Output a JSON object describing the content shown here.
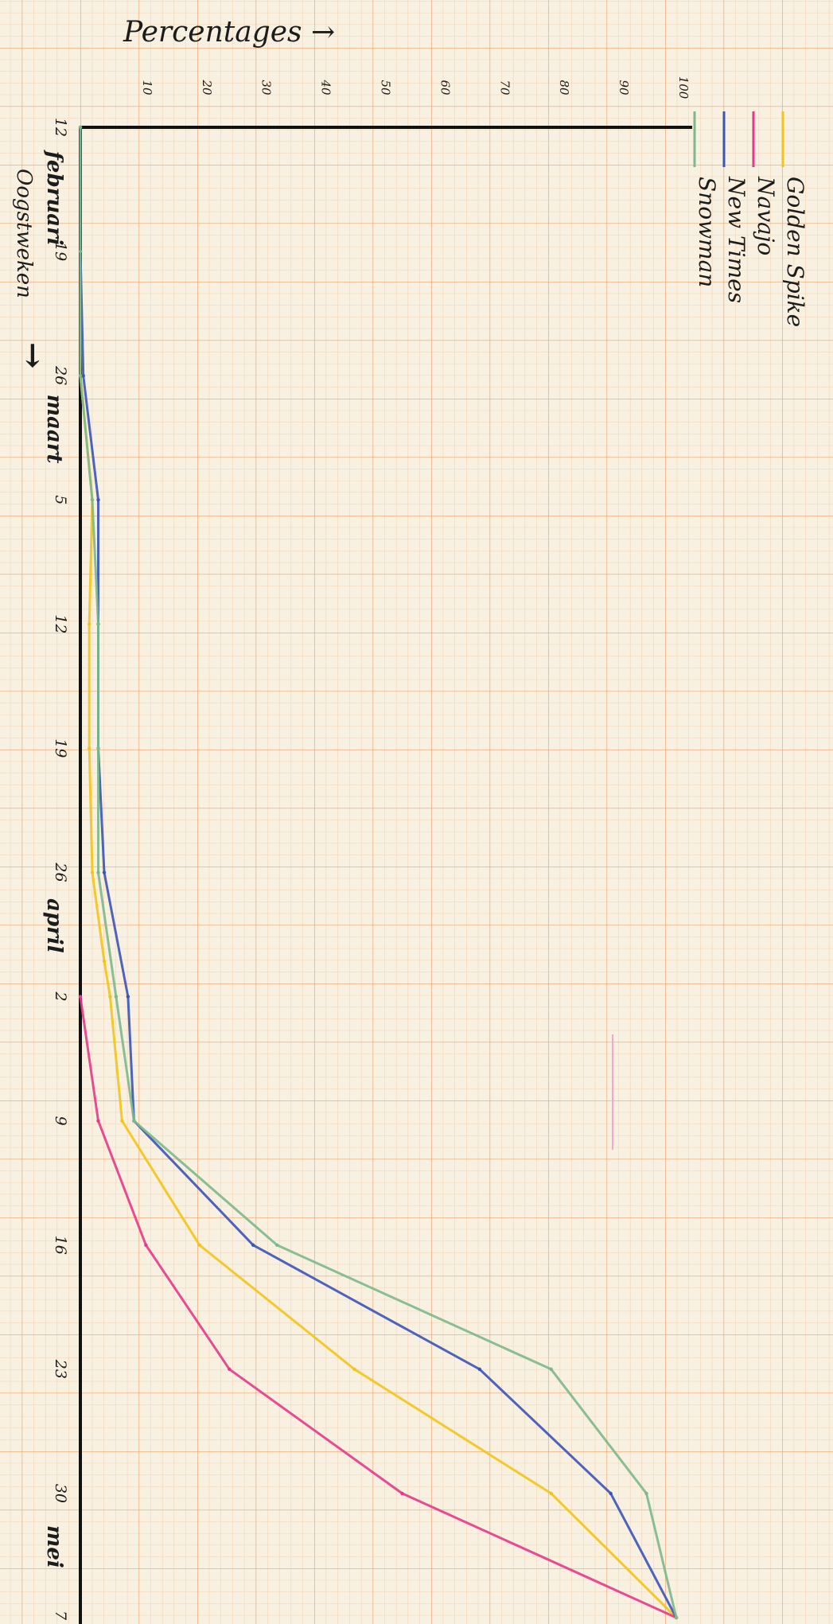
{
  "chart_data": {
    "type": "line",
    "ylabel": "Percentages →",
    "xlabel": "Oogstweken",
    "ylim": [
      0,
      100
    ],
    "yticks": [
      "10",
      "20",
      "30",
      "40",
      "50",
      "60",
      "70",
      "80",
      "90",
      "100"
    ],
    "x_ticks": [
      {
        "label": "12",
        "x": 12
      },
      {
        "label": "19",
        "x": 19
      },
      {
        "label": "26",
        "x": 26
      },
      {
        "label": "5",
        "x": 33
      },
      {
        "label": "12",
        "x": 40
      },
      {
        "label": "19",
        "x": 47
      },
      {
        "label": "26",
        "x": 54
      },
      {
        "label": "2",
        "x": 61
      },
      {
        "label": "9",
        "x": 68
      },
      {
        "label": "16",
        "x": 75
      },
      {
        "label": "23",
        "x": 82
      },
      {
        "label": "30",
        "x": 89
      },
      {
        "label": "7",
        "x": 96
      }
    ],
    "xlim": [
      12,
      96
    ],
    "month_labels": [
      {
        "label": "februari",
        "x": 16
      },
      {
        "label": "maart",
        "x": 29
      },
      {
        "label": "april",
        "x": 57
      },
      {
        "label": "mei",
        "x": 92
      }
    ],
    "arrow_label": "→",
    "series": [
      {
        "name": "Golden Spike",
        "color": "#f2c418",
        "points": [
          [
            12,
            0
          ],
          [
            26,
            0
          ],
          [
            33,
            2
          ],
          [
            40,
            1.5
          ],
          [
            47,
            1.5
          ],
          [
            54,
            2
          ],
          [
            59,
            4
          ],
          [
            61,
            5
          ],
          [
            68,
            7
          ],
          [
            75,
            20
          ],
          [
            82,
            46
          ],
          [
            89,
            79
          ],
          [
            96,
            100
          ]
        ]
      },
      {
        "name": "Navajo",
        "color": "#e4398a",
        "points": [
          [
            61,
            0
          ],
          [
            68,
            3
          ],
          [
            75,
            11
          ],
          [
            82,
            25
          ],
          [
            89,
            54
          ],
          [
            96,
            100
          ]
        ]
      },
      {
        "name": "New Times",
        "color": "#3a53b8",
        "points": [
          [
            12,
            0
          ],
          [
            19,
            0
          ],
          [
            26,
            0.5
          ],
          [
            33,
            3
          ],
          [
            40,
            3
          ],
          [
            47,
            3
          ],
          [
            54,
            4
          ],
          [
            61,
            8
          ],
          [
            68,
            9
          ],
          [
            75,
            29
          ],
          [
            82,
            67
          ],
          [
            89,
            89
          ],
          [
            96,
            100
          ]
        ]
      },
      {
        "name": "Snowman",
        "color": "#7cb88c",
        "points": [
          [
            12,
            0
          ],
          [
            19,
            0
          ],
          [
            26,
            0
          ],
          [
            33,
            2
          ],
          [
            40,
            3
          ],
          [
            47,
            3
          ],
          [
            54,
            3
          ],
          [
            61,
            6
          ],
          [
            68,
            9
          ],
          [
            75,
            33
          ],
          [
            82,
            79
          ],
          [
            89,
            95
          ],
          [
            96,
            100
          ]
        ]
      }
    ]
  }
}
